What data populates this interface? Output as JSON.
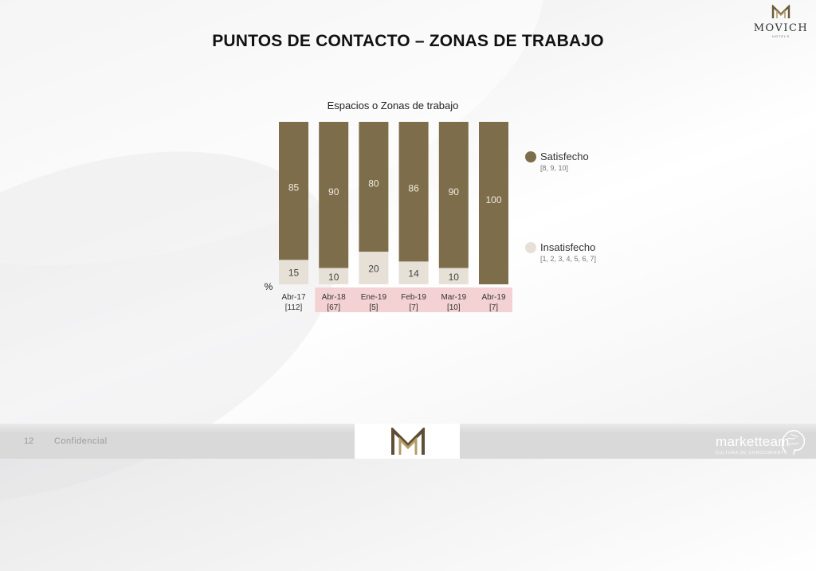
{
  "logo": {
    "name": "MOVICH",
    "sub": "HOTELS"
  },
  "title": "PUNTOS DE CONTACTO – ZONAS DE TRABAJO",
  "footer": {
    "page": "12",
    "label": "Confidencial",
    "brand": "marketteam",
    "brand_sub": "CULTURA DE CONOCIMIENTO"
  },
  "colors": {
    "satisfied": "#7d6d4b",
    "unsatisfied": "#e6e0d6",
    "highlight": "#f4d2d3"
  },
  "chart_data": {
    "type": "bar",
    "stacked": true,
    "title": "Espacios o Zonas de trabajo",
    "unit": "%",
    "categories": [
      "Abr-17",
      "Abr-18",
      "Ene-19",
      "Feb-19",
      "Mar-19",
      "Abr-19"
    ],
    "bases": [
      "[112]",
      "[67]",
      "[5]",
      "[7]",
      "[10]",
      "[7]"
    ],
    "highlighted": [
      false,
      true,
      true,
      true,
      true,
      true
    ],
    "series": [
      {
        "name": "Insatisfecho",
        "range": "[1, 2, 3, 4, 5, 6, 7]",
        "values": [
          15,
          10,
          20,
          14,
          10,
          0
        ]
      },
      {
        "name": "Satisfecho",
        "range": "[8, 9, 10]",
        "values": [
          85,
          90,
          80,
          86,
          90,
          100
        ]
      }
    ],
    "ylim": [
      0,
      100
    ]
  }
}
